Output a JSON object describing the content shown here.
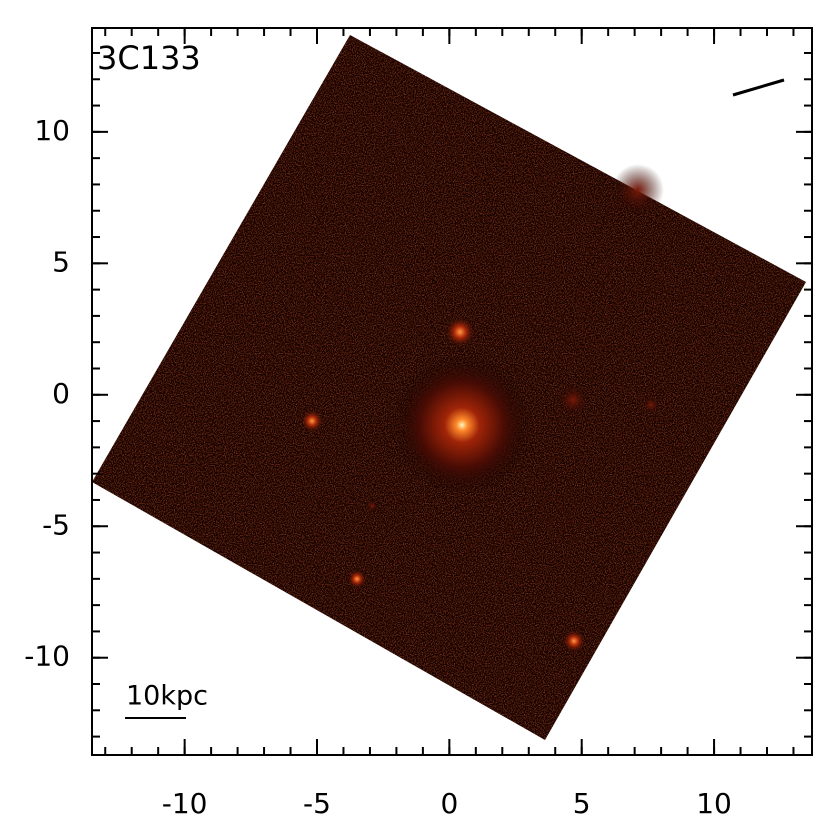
{
  "chart_data": {
    "type": "image",
    "title": "3C133",
    "scale_bar_label": "10kpc",
    "xlim": [
      -13.5,
      13.7
    ],
    "ylim": [
      -13.7,
      13.95
    ],
    "xticks": [
      -10,
      -5,
      0,
      5,
      10
    ],
    "yticks": [
      -10,
      -5,
      0,
      5,
      10
    ]
  }
}
